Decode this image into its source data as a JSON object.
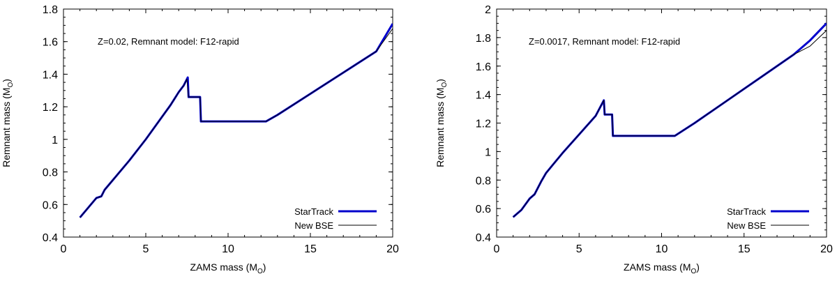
{
  "chart_data": [
    {
      "type": "line",
      "annotation": "Z=0.02, Remnant model: F12-rapid",
      "xlabel": {
        "main": "ZAMS mass (M",
        "sub": "O",
        "close": ")"
      },
      "ylabel": {
        "main": "Remnant mass (M",
        "sub": "O",
        "close": ")"
      },
      "xlim": [
        0,
        20
      ],
      "ylim": [
        0.4,
        1.8
      ],
      "xticks": [
        "0",
        "5",
        "10",
        "15",
        "20"
      ],
      "yticks": [
        "0.4",
        "0.6",
        "0.8",
        "1",
        "1.2",
        "1.4",
        "1.6",
        "1.8"
      ],
      "legend_position": "bottom-right",
      "series": [
        {
          "name": "StarTrack",
          "color": "#0000cc",
          "x": [
            1.0,
            1.5,
            2.0,
            2.3,
            2.5,
            3.0,
            4.0,
            5.0,
            6.0,
            6.5,
            7.0,
            7.3,
            7.55,
            7.6,
            8.2,
            8.3,
            8.35,
            12.3,
            13.0,
            15.0,
            17.0,
            19.0,
            20.0
          ],
          "y": [
            0.52,
            0.58,
            0.64,
            0.65,
            0.69,
            0.75,
            0.87,
            1.0,
            1.14,
            1.21,
            1.29,
            1.33,
            1.38,
            1.26,
            1.26,
            1.26,
            1.11,
            1.11,
            1.15,
            1.28,
            1.41,
            1.54,
            1.71
          ]
        },
        {
          "name": "New BSE",
          "color": "#000000",
          "x": [
            1.0,
            1.5,
            2.0,
            2.3,
            2.5,
            3.0,
            4.0,
            5.0,
            6.0,
            6.5,
            7.0,
            7.3,
            7.5,
            7.6,
            8.2,
            8.3,
            8.35,
            12.3,
            13.0,
            15.0,
            17.0,
            19.0,
            20.0
          ],
          "y": [
            0.52,
            0.58,
            0.64,
            0.65,
            0.69,
            0.75,
            0.87,
            1.0,
            1.14,
            1.21,
            1.29,
            1.33,
            1.37,
            1.26,
            1.26,
            1.26,
            1.11,
            1.11,
            1.15,
            1.28,
            1.41,
            1.54,
            1.68
          ]
        }
      ]
    },
    {
      "type": "line",
      "annotation": "Z=0.0017, Remnant model: F12-rapid",
      "xlabel": {
        "main": "ZAMS mass (M",
        "sub": "O",
        "close": ")"
      },
      "ylabel": {
        "main": "Remnant mass (M",
        "sub": "O",
        "close": ")"
      },
      "xlim": [
        0,
        20
      ],
      "ylim": [
        0.4,
        2.0
      ],
      "xticks": [
        "0",
        "5",
        "10",
        "15",
        "20"
      ],
      "yticks": [
        "0.4",
        "0.6",
        "0.8",
        "1",
        "1.2",
        "1.4",
        "1.6",
        "1.8",
        "2"
      ],
      "legend_position": "bottom-right",
      "series": [
        {
          "name": "StarTrack",
          "color": "#0000cc",
          "x": [
            1.0,
            1.5,
            2.0,
            2.3,
            2.7,
            3.0,
            3.5,
            4.0,
            5.0,
            6.0,
            6.5,
            6.55,
            7.0,
            7.05,
            10.8,
            12.0,
            14.0,
            16.0,
            18.0,
            19.0,
            20.0
          ],
          "y": [
            0.54,
            0.59,
            0.67,
            0.7,
            0.79,
            0.85,
            0.92,
            0.99,
            1.12,
            1.25,
            1.36,
            1.26,
            1.26,
            1.11,
            1.11,
            1.2,
            1.36,
            1.52,
            1.68,
            1.78,
            1.9
          ]
        },
        {
          "name": "New BSE",
          "color": "#000000",
          "x": [
            1.0,
            1.5,
            2.0,
            2.3,
            2.7,
            3.0,
            3.5,
            4.0,
            5.0,
            6.0,
            6.5,
            6.55,
            7.0,
            7.05,
            10.8,
            12.0,
            14.0,
            16.0,
            18.0,
            19.0,
            20.0
          ],
          "y": [
            0.54,
            0.59,
            0.67,
            0.7,
            0.79,
            0.85,
            0.92,
            0.99,
            1.12,
            1.25,
            1.36,
            1.26,
            1.26,
            1.11,
            1.11,
            1.2,
            1.36,
            1.52,
            1.68,
            1.74,
            1.85
          ]
        }
      ]
    }
  ]
}
